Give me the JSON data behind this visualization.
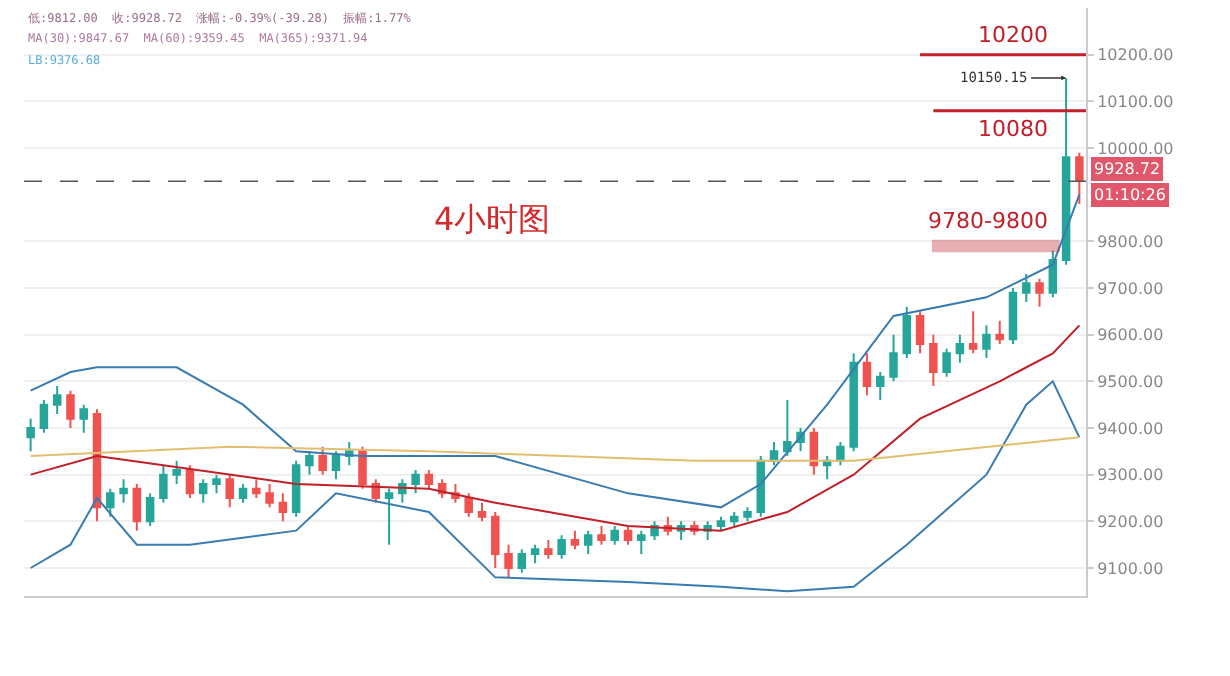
{
  "chart_data": {
    "type": "candlestick",
    "categories": [
      null,
      null,
      null,
      null,
      null,
      null,
      null,
      null,
      null,
      null,
      null,
      null,
      null,
      null,
      null,
      null,
      null,
      null,
      null,
      null,
      null,
      null,
      null,
      null,
      null,
      null,
      null,
      null,
      null,
      null,
      null,
      null,
      null,
      null,
      null,
      null,
      null,
      null,
      null,
      null,
      null,
      null,
      null,
      null,
      null,
      null,
      null,
      null,
      null,
      null,
      null,
      null,
      null,
      null,
      null,
      null,
      null,
      null,
      null,
      null,
      null,
      null,
      null,
      null,
      null,
      null,
      null,
      null,
      null,
      null,
      null,
      null,
      null,
      null,
      null,
      null,
      null,
      null,
      null,
      null
    ],
    "ohlc": [
      [
        9380,
        9420,
        9350,
        9400
      ],
      [
        9400,
        9460,
        9390,
        9450
      ],
      [
        9450,
        9490,
        9430,
        9470
      ],
      [
        9470,
        9480,
        9400,
        9420
      ],
      [
        9420,
        9450,
        9390,
        9440
      ],
      [
        9430,
        9440,
        9200,
        9230
      ],
      [
        9230,
        9270,
        9210,
        9260
      ],
      [
        9260,
        9290,
        9240,
        9270
      ],
      [
        9270,
        9280,
        9180,
        9200
      ],
      [
        9200,
        9260,
        9190,
        9250
      ],
      [
        9250,
        9320,
        9240,
        9300
      ],
      [
        9300,
        9330,
        9280,
        9310
      ],
      [
        9310,
        9320,
        9250,
        9260
      ],
      [
        9260,
        9290,
        9240,
        9280
      ],
      [
        9280,
        9300,
        9260,
        9290
      ],
      [
        9290,
        9300,
        9230,
        9250
      ],
      [
        9250,
        9280,
        9240,
        9270
      ],
      [
        9270,
        9290,
        9250,
        9260
      ],
      [
        9260,
        9280,
        9230,
        9240
      ],
      [
        9240,
        9260,
        9200,
        9220
      ],
      [
        9220,
        9330,
        9210,
        9320
      ],
      [
        9320,
        9350,
        9300,
        9340
      ],
      [
        9340,
        9360,
        9300,
        9310
      ],
      [
        9310,
        9350,
        9290,
        9340
      ],
      [
        9340,
        9370,
        9320,
        9350
      ],
      [
        9350,
        9360,
        9270,
        9280
      ],
      [
        9280,
        9290,
        9240,
        9250
      ],
      [
        9250,
        9270,
        9150,
        9260
      ],
      [
        9260,
        9290,
        9240,
        9280
      ],
      [
        9280,
        9310,
        9260,
        9300
      ],
      [
        9300,
        9310,
        9270,
        9280
      ],
      [
        9280,
        9290,
        9250,
        9260
      ],
      [
        9260,
        9280,
        9240,
        9250
      ],
      [
        9250,
        9260,
        9210,
        9220
      ],
      [
        9220,
        9240,
        9200,
        9210
      ],
      [
        9210,
        9220,
        9100,
        9130
      ],
      [
        9130,
        9150,
        9080,
        9100
      ],
      [
        9100,
        9140,
        9090,
        9130
      ],
      [
        9130,
        9150,
        9110,
        9140
      ],
      [
        9140,
        9160,
        9120,
        9130
      ],
      [
        9130,
        9170,
        9120,
        9160
      ],
      [
        9160,
        9180,
        9140,
        9150
      ],
      [
        9150,
        9180,
        9130,
        9170
      ],
      [
        9170,
        9190,
        9150,
        9160
      ],
      [
        9160,
        9190,
        9150,
        9180
      ],
      [
        9180,
        9190,
        9150,
        9160
      ],
      [
        9160,
        9180,
        9130,
        9170
      ],
      [
        9170,
        9200,
        9160,
        9190
      ],
      [
        9190,
        9210,
        9170,
        9180
      ],
      [
        9180,
        9200,
        9160,
        9190
      ],
      [
        9190,
        9200,
        9170,
        9180
      ],
      [
        9180,
        9200,
        9160,
        9190
      ],
      [
        9190,
        9210,
        9180,
        9200
      ],
      [
        9200,
        9220,
        9190,
        9210
      ],
      [
        9210,
        9230,
        9200,
        9220
      ],
      [
        9220,
        9340,
        9210,
        9330
      ],
      [
        9330,
        9370,
        9320,
        9350
      ],
      [
        9350,
        9460,
        9340,
        9370
      ],
      [
        9370,
        9400,
        9350,
        9390
      ],
      [
        9390,
        9400,
        9300,
        9320
      ],
      [
        9320,
        9340,
        9290,
        9330
      ],
      [
        9330,
        9370,
        9320,
        9360
      ],
      [
        9360,
        9560,
        9350,
        9540
      ],
      [
        9540,
        9560,
        9470,
        9490
      ],
      [
        9490,
        9520,
        9460,
        9510
      ],
      [
        9510,
        9600,
        9500,
        9560
      ],
      [
        9560,
        9660,
        9550,
        9640
      ],
      [
        9640,
        9650,
        9560,
        9580
      ],
      [
        9580,
        9600,
        9490,
        9520
      ],
      [
        9520,
        9570,
        9510,
        9560
      ],
      [
        9560,
        9600,
        9540,
        9580
      ],
      [
        9580,
        9650,
        9560,
        9570
      ],
      [
        9570,
        9620,
        9550,
        9600
      ],
      [
        9600,
        9630,
        9580,
        9590
      ],
      [
        9590,
        9700,
        9580,
        9690
      ],
      [
        9690,
        9730,
        9670,
        9710
      ],
      [
        9710,
        9720,
        9660,
        9690
      ],
      [
        9690,
        9780,
        9680,
        9760
      ],
      [
        9760,
        10150.15,
        9750,
        9980
      ],
      [
        9980,
        9990,
        9880,
        9930
      ]
    ],
    "colors": [
      "#26a69a",
      "#26a69a",
      "#26a69a",
      "#ef5350",
      "#26a69a",
      "#ef5350",
      "#26a69a",
      "#26a69a",
      "#ef5350",
      "#26a69a",
      "#26a69a",
      "#26a69a",
      "#ef5350",
      "#26a69a",
      "#26a69a",
      "#ef5350",
      "#26a69a",
      "#ef5350",
      "#ef5350",
      "#ef5350",
      "#26a69a",
      "#26a69a",
      "#ef5350",
      "#26a69a",
      "#26a69a",
      "#ef5350",
      "#ef5350",
      "#26a69a",
      "#26a69a",
      "#26a69a",
      "#ef5350",
      "#ef5350",
      "#ef5350",
      "#ef5350",
      "#ef5350",
      "#ef5350",
      "#ef5350",
      "#26a69a",
      "#26a69a",
      "#ef5350",
      "#26a69a",
      "#ef5350",
      "#26a69a",
      "#ef5350",
      "#26a69a",
      "#ef5350",
      "#26a69a",
      "#26a69a",
      "#ef5350",
      "#26a69a",
      "#ef5350",
      "#26a69a",
      "#26a69a",
      "#26a69a",
      "#26a69a",
      "#26a69a",
      "#26a69a",
      "#26a69a",
      "#26a69a",
      "#ef5350",
      "#26a69a",
      "#26a69a",
      "#26a69a",
      "#ef5350",
      "#26a69a",
      "#26a69a",
      "#26a69a",
      "#ef5350",
      "#ef5350",
      "#26a69a",
      "#26a69a",
      "#ef5350",
      "#26a69a",
      "#ef5350",
      "#26a69a",
      "#26a69a",
      "#ef5350",
      "#26a69a",
      "#26a69a",
      "#ef5350"
    ],
    "series": [
      {
        "type": "line",
        "color": "#3a7bb0",
        "values": [
          9480,
          null,
          null,
          9520,
          null,
          9530,
          null,
          null,
          null,
          null,
          null,
          9530,
          null,
          null,
          null,
          null,
          9450,
          null,
          null,
          null,
          9350,
          null,
          null,
          null,
          null,
          9340,
          null,
          null,
          null,
          null,
          9340,
          null,
          null,
          null,
          null,
          9340,
          null,
          null,
          null,
          null,
          null,
          null,
          null,
          null,
          null,
          9260,
          null,
          null,
          null,
          null,
          null,
          null,
          9230,
          null,
          null,
          9280,
          null,
          null,
          null,
          null,
          9450,
          null,
          null,
          null,
          null,
          9640,
          null,
          null,
          null,
          null,
          null,
          null,
          9680,
          null,
          null,
          null,
          null,
          9750,
          null,
          9900
        ]
      },
      {
        "type": "line",
        "color": "#3a7bb0",
        "values": [
          9100,
          null,
          null,
          9150,
          null,
          9250,
          null,
          null,
          9150,
          null,
          null,
          null,
          9150,
          null,
          null,
          null,
          null,
          null,
          null,
          null,
          9180,
          null,
          null,
          9260,
          null,
          null,
          null,
          null,
          null,
          null,
          9220,
          null,
          null,
          null,
          null,
          9080,
          null,
          null,
          null,
          null,
          null,
          null,
          null,
          null,
          null,
          9070,
          null,
          null,
          null,
          null,
          null,
          null,
          9060,
          null,
          null,
          null,
          null,
          9050,
          null,
          null,
          null,
          null,
          9060,
          null,
          null,
          null,
          9150,
          null,
          null,
          null,
          null,
          null,
          9300,
          null,
          null,
          9450,
          null,
          9500,
          null,
          9380
        ]
      },
      {
        "type": "line",
        "color": "#c0202a",
        "values": [
          9300,
          null,
          null,
          null,
          null,
          9340,
          null,
          null,
          null,
          null,
          9320,
          null,
          null,
          null,
          null,
          null,
          null,
          null,
          null,
          null,
          9280,
          null,
          null,
          null,
          null,
          null,
          null,
          null,
          null,
          null,
          9270,
          null,
          null,
          null,
          null,
          9240,
          null,
          null,
          null,
          null,
          null,
          null,
          null,
          null,
          null,
          9190,
          null,
          null,
          null,
          null,
          null,
          null,
          9180,
          null,
          null,
          null,
          null,
          9220,
          null,
          null,
          null,
          null,
          9300,
          null,
          null,
          null,
          null,
          9420,
          null,
          null,
          null,
          null,
          null,
          9500,
          null,
          null,
          null,
          9560,
          null,
          9620
        ]
      },
      {
        "type": "line",
        "color": "#e0c070",
        "values": [
          9340,
          null,
          null,
          null,
          null,
          null,
          null,
          null,
          null,
          null,
          null,
          null,
          null,
          null,
          null,
          9360,
          null,
          null,
          null,
          null,
          null,
          null,
          null,
          null,
          null,
          null,
          null,
          null,
          null,
          null,
          9350,
          null,
          null,
          null,
          null,
          null,
          null,
          null,
          null,
          null,
          null,
          null,
          null,
          null,
          null,
          null,
          null,
          null,
          null,
          null,
          9330,
          null,
          null,
          null,
          null,
          null,
          null,
          null,
          null,
          null,
          null,
          null,
          9330,
          null,
          null,
          null,
          null,
          null,
          null,
          null,
          null,
          null,
          null,
          null,
          null,
          null,
          null,
          null,
          null,
          9380
        ]
      }
    ],
    "ylim": [
      9040,
      10300
    ],
    "yticks": [
      {
        "value": 9100,
        "label": "9100.00"
      },
      {
        "value": 9200,
        "label": "9200.00"
      },
      {
        "value": 9300,
        "label": "9300.00"
      },
      {
        "value": 9400,
        "label": "9400.00"
      },
      {
        "value": 9500,
        "label": "9500.00"
      },
      {
        "value": 9600,
        "label": "9600.00"
      },
      {
        "value": 9700,
        "label": "9700.00"
      },
      {
        "value": 9800,
        "label": "9800.00"
      },
      {
        "value": 10000,
        "label": "10000.00"
      },
      {
        "value": 10100,
        "label": "10100.00"
      },
      {
        "value": 10200,
        "label": "10200.00"
      }
    ],
    "tick_labels": "y",
    "grid": "y",
    "ref_lines": [
      {
        "axis": "y",
        "value": 10200,
        "label": "10200",
        "color": "#c0202a",
        "line_style": "solid"
      },
      {
        "axis": "y",
        "value": 10080,
        "label": "10080",
        "color": "#c0202a",
        "line_style": "solid"
      },
      {
        "axis": "y",
        "value": 9928.72,
        "label": "9928.72",
        "color": "#555555",
        "line_style": "dashed"
      }
    ],
    "bands": [
      {
        "axis": "y",
        "from": 9780,
        "to": 9800,
        "label": "9780-9800",
        "color": "#c0202a"
      }
    ],
    "annotations": [
      "4小时图",
      "10150.15",
      "01:10:26",
      "低:9812.00  收:9928.72  涨幅:-0.39%(-39.28)  振幅:1.77%",
      "MA(30):9847.67  MA(60):9359.45  MA(365):9371.94",
      "LB:9376.68"
    ]
  }
}
